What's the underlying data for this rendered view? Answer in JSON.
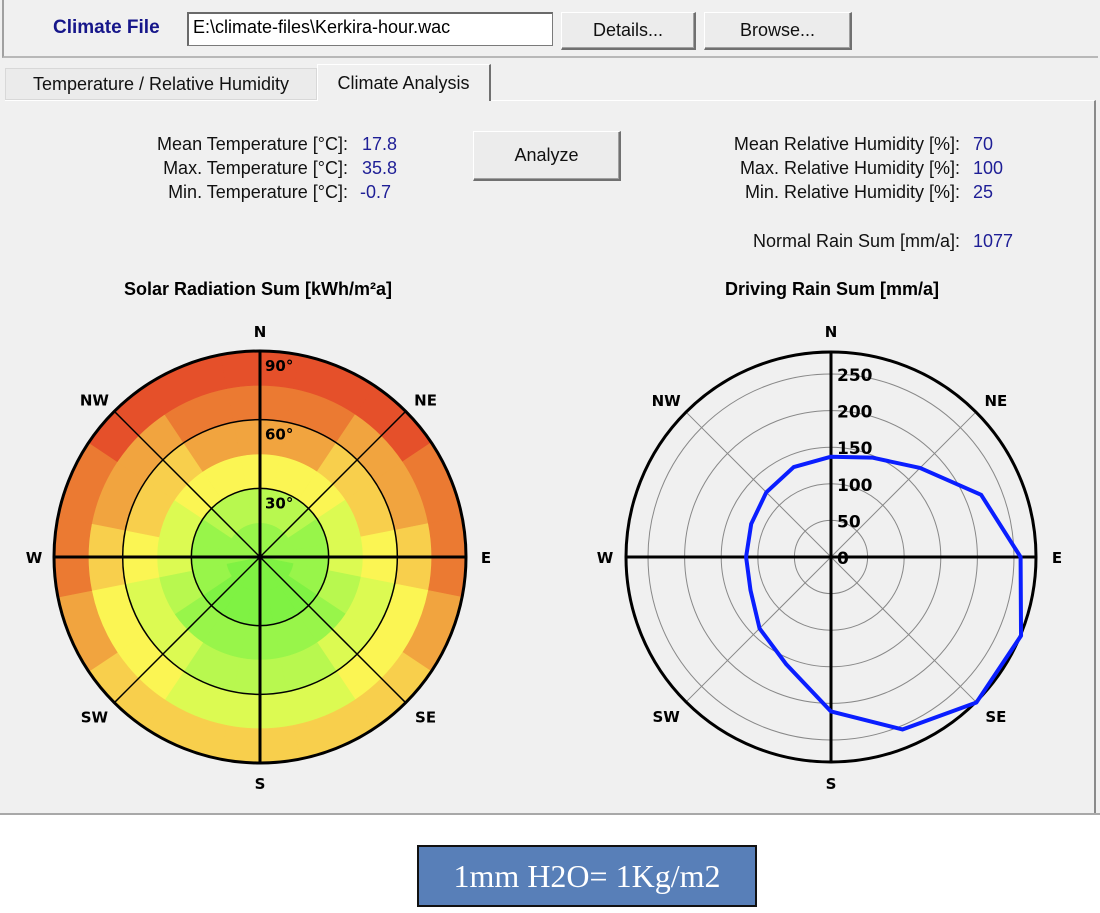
{
  "header": {
    "climate_file_label": "Climate File",
    "climate_file_value": "E:\\climate-files\\Kerkira-hour.wac",
    "details_button": "Details...",
    "browse_button": "Browse..."
  },
  "tabs": [
    {
      "label": "Temperature / Relative Humidity",
      "active": false
    },
    {
      "label": "Climate Analysis",
      "active": true
    }
  ],
  "analysis": {
    "analyze_button": "Analyze",
    "temperature": [
      {
        "label": "Mean Temperature [°C]:",
        "value": "17.8"
      },
      {
        "label": "Max. Temperature [°C]:",
        "value": "35.8"
      },
      {
        "label": "Min. Temperature [°C]:",
        "value": "-0.7"
      }
    ],
    "humidity": [
      {
        "label": "Mean Relative Humidity [%]:",
        "value": "70"
      },
      {
        "label": "Max. Relative Humidity [%]:",
        "value": "100"
      },
      {
        "label": "Min. Relative Humidity [%]:",
        "value": "25"
      }
    ],
    "rain": {
      "label": "Normal Rain Sum [mm/a]:",
      "value": "1077"
    }
  },
  "chart_data": [
    {
      "type": "heatmap",
      "title": "Solar Radiation Sum [kWh/m²a]",
      "directions": [
        "N",
        "NE",
        "E",
        "SE",
        "S",
        "SW",
        "W",
        "NW"
      ],
      "tilt_labels": [
        "90°",
        "60°",
        "30°"
      ],
      "tilt_rings": [
        30,
        60,
        90
      ],
      "azimuth_step_deg": 22.5,
      "tilt_band_deg": 15,
      "palette": [
        "#7ff243",
        "#98f54a",
        "#b8f84f",
        "#dcfa52",
        "#fbf553",
        "#f8cf4c",
        "#f1a43f",
        "#eb7a32",
        "#e5502a",
        "#dd3122"
      ],
      "levels": [
        [
          1,
          1,
          1,
          1,
          1,
          0,
          0,
          0,
          0,
          0,
          0,
          0,
          1,
          1,
          1,
          1
        ],
        [
          2,
          2,
          2,
          1,
          1,
          1,
          0,
          0,
          0,
          0,
          0,
          1,
          1,
          1,
          2,
          2
        ],
        [
          4,
          4,
          4,
          3,
          3,
          2,
          1,
          1,
          1,
          1,
          1,
          2,
          3,
          3,
          4,
          4
        ],
        [
          6,
          6,
          5,
          5,
          4,
          3,
          3,
          2,
          2,
          2,
          3,
          3,
          4,
          5,
          5,
          6
        ],
        [
          7,
          7,
          6,
          6,
          5,
          4,
          4,
          3,
          3,
          3,
          4,
          4,
          5,
          6,
          6,
          7
        ],
        [
          8,
          8,
          8,
          7,
          7,
          6,
          5,
          5,
          5,
          5,
          5,
          6,
          7,
          7,
          8,
          8
        ]
      ]
    },
    {
      "type": "line",
      "subtype": "polar",
      "title": "Driving Rain Sum [mm/a]",
      "directions": [
        "N",
        "NE",
        "E",
        "SE",
        "S",
        "SW",
        "W",
        "NW"
      ],
      "r_ticks": [
        "0",
        "50",
        "100",
        "150",
        "200",
        "250"
      ],
      "r_tick_values": [
        0,
        50,
        100,
        150,
        200,
        250
      ],
      "r_max": 280,
      "azimuths": [
        "N",
        "NNE",
        "NE",
        "ENE",
        "E",
        "ESE",
        "SE",
        "SSE",
        "S",
        "SSW",
        "SW",
        "WSW",
        "W",
        "WNW",
        "NW",
        "NNW"
      ],
      "values": [
        137,
        147,
        172,
        222,
        259,
        281,
        281,
        255,
        211,
        159,
        138,
        119,
        116,
        118,
        125,
        133
      ],
      "color": "#0a1eff"
    }
  ],
  "note": "1mm H2O= 1Kg/m2"
}
